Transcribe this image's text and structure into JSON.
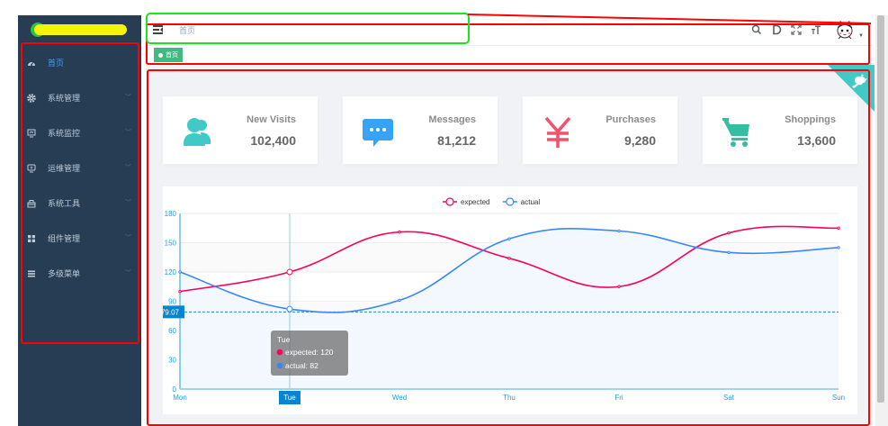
{
  "sidebar": {
    "items": [
      {
        "label": "首页",
        "icon": "dashboard-icon",
        "active": true
      },
      {
        "label": "系统管理",
        "icon": "gear-icon",
        "has_children": true
      },
      {
        "label": "系统监控",
        "icon": "monitor-icon",
        "has_children": true
      },
      {
        "label": "运维管理",
        "icon": "ops-monitor-icon",
        "has_children": true
      },
      {
        "label": "系统工具",
        "icon": "toolbox-icon",
        "has_children": true
      },
      {
        "label": "组件管理",
        "icon": "grid-icon",
        "has_children": true
      },
      {
        "label": "多级菜单",
        "icon": "list-icon",
        "has_children": true
      }
    ],
    "chevron": "﹀"
  },
  "navbar": {
    "breadcrumb": "首页",
    "icons": {
      "search": "⚲",
      "doc": "D",
      "fullscreen": "⛶",
      "size": "ᴛT"
    },
    "caret": "▼"
  },
  "tags": [
    {
      "label": "首页",
      "active": true
    }
  ],
  "cards": [
    {
      "title": "New Visits",
      "value": "102,400",
      "icon": "people-icon",
      "color": "#40c9c6"
    },
    {
      "title": "Messages",
      "value": "81,212",
      "icon": "message-icon",
      "color": "#36a3f7"
    },
    {
      "title": "Purchases",
      "value": "9,280",
      "icon": "money-icon",
      "color": "#f4516c"
    },
    {
      "title": "Shoppings",
      "value": "13,600",
      "icon": "shopping-cart-icon",
      "color": "#34bfa3"
    }
  ],
  "chart_data": {
    "type": "line",
    "categories": [
      "Mon",
      "Tue",
      "Wed",
      "Thu",
      "Fri",
      "Sat",
      "Sun"
    ],
    "series": [
      {
        "name": "expected",
        "color": "#ff005a",
        "values": [
          100,
          120,
          161,
          134,
          105,
          160,
          165
        ]
      },
      {
        "name": "actual",
        "color": "#3888fa",
        "values": [
          120,
          82,
          91,
          154,
          162,
          140,
          145
        ]
      }
    ],
    "y_ticks": [
      0,
      30,
      60,
      90,
      120,
      150,
      180
    ],
    "ylim": [
      0,
      180
    ],
    "mark_line": {
      "value": "79.07"
    },
    "legend_position": "top",
    "tooltip": {
      "title": "Tue",
      "rows": [
        {
          "label": "expected: 120",
          "color": "#ff005a"
        },
        {
          "label": "actual: 82",
          "color": "#3888fa"
        }
      ]
    },
    "axis_pointer_label": "Tue"
  }
}
